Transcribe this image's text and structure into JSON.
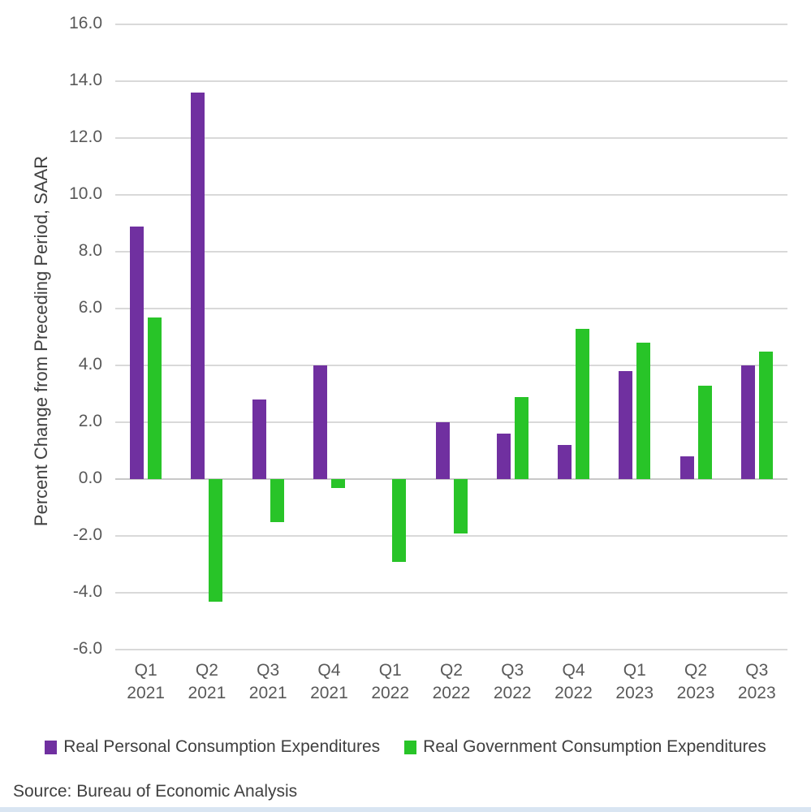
{
  "chart_data": {
    "type": "bar",
    "categories": [
      {
        "quarter": "Q1",
        "year": "2021"
      },
      {
        "quarter": "Q2",
        "year": "2021"
      },
      {
        "quarter": "Q3",
        "year": "2021"
      },
      {
        "quarter": "Q4",
        "year": "2021"
      },
      {
        "quarter": "Q1",
        "year": "2022"
      },
      {
        "quarter": "Q2",
        "year": "2022"
      },
      {
        "quarter": "Q3",
        "year": "2022"
      },
      {
        "quarter": "Q4",
        "year": "2022"
      },
      {
        "quarter": "Q1",
        "year": "2023"
      },
      {
        "quarter": "Q2",
        "year": "2023"
      },
      {
        "quarter": "Q3",
        "year": "2023"
      }
    ],
    "series": [
      {
        "name": "Real Personal Consumption Expenditures",
        "color": "#7030A0",
        "values": [
          8.9,
          13.6,
          2.8,
          4.0,
          0.0,
          2.0,
          1.6,
          1.2,
          3.8,
          0.8,
          4.0
        ]
      },
      {
        "name": "Real Government Consumption Expenditures",
        "color": "#28C428",
        "values": [
          5.7,
          -4.3,
          -1.5,
          -0.3,
          -2.9,
          -1.9,
          2.9,
          5.3,
          4.8,
          3.3,
          4.5
        ]
      }
    ],
    "title": "",
    "xlabel": "",
    "ylabel": "Percent Change from Preceding Period, SAAR",
    "ylim": [
      -6.0,
      16.0
    ],
    "ytick_step": 2.0,
    "yticks": [
      "16.0",
      "14.0",
      "12.0",
      "10.0",
      "8.0",
      "6.0",
      "4.0",
      "2.0",
      "0.0",
      "-2.0",
      "-4.0",
      "-6.0"
    ],
    "grid": true,
    "legend_position": "bottom"
  },
  "source": {
    "label": "Source: Bureau of Economic Analysis"
  },
  "colors": {
    "gridline": "#D9D9D9",
    "axis_text": "#595959",
    "body_text": "#404040",
    "bottom_strip": "#D9E5F2"
  }
}
